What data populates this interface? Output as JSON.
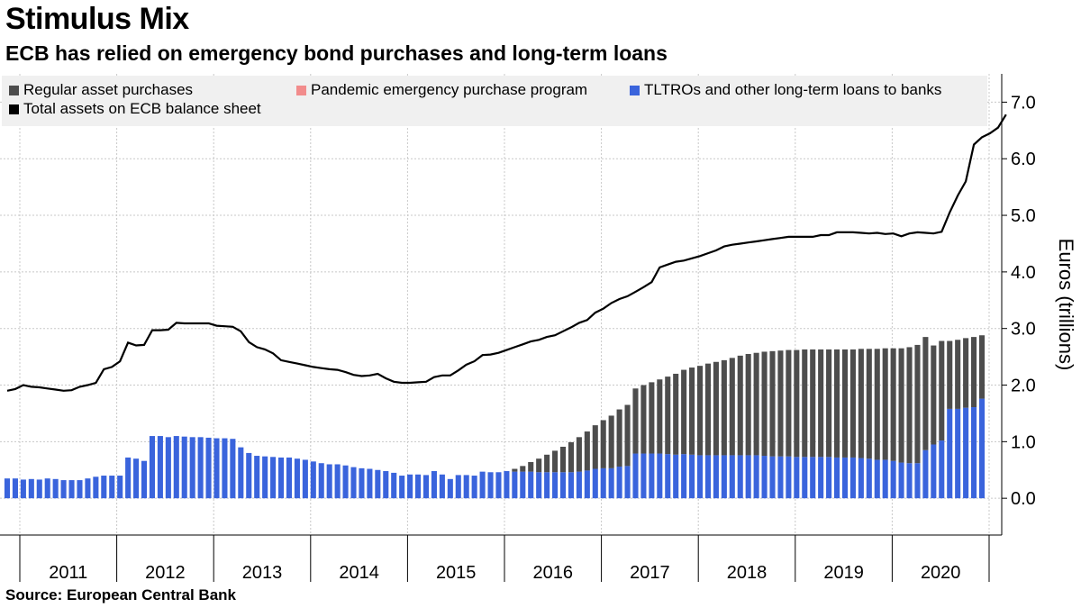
{
  "header": {
    "title": "Stimulus Mix",
    "subtitle": "ECB has relied on emergency bond purchases and long-term loans"
  },
  "footer": {
    "source": "Source:  European Central Bank"
  },
  "chart_data": {
    "type": "bar",
    "title": "Stimulus Mix",
    "subtitle": "ECB has relied on emergency bond purchases and long-term loans",
    "ylabel": "Euros (trillions)",
    "ylim": [
      -0.65,
      7.5
    ],
    "y_ticks": [
      "0.0",
      "1.0",
      "2.0",
      "3.0",
      "4.0",
      "5.0",
      "6.0",
      "7.0"
    ],
    "y_axis_side": "right",
    "grid": true,
    "legend_position": "top-left",
    "x_start": "2010-07",
    "x_end": "2020-10",
    "x_labels": [
      "2011",
      "2012",
      "2013",
      "2014",
      "2015",
      "2016",
      "2017",
      "2018",
      "2019",
      "2020"
    ],
    "colors": {
      "regular": "#4d4d4d",
      "pandemic": "#f28c8c",
      "tltro": "#3a64dc",
      "total": "#000000",
      "legend_bg": "#f0f0f0",
      "grid": "#c8c8c8"
    },
    "legend": [
      {
        "key": "regular",
        "label": "Regular asset purchases"
      },
      {
        "key": "pandemic",
        "label": "Pandemic emergency purchase program"
      },
      {
        "key": "tltro",
        "label": "TLTROs and other long-term loans to banks"
      },
      {
        "key": "total",
        "label": "Total assets on ECB balance sheet"
      }
    ],
    "series": [
      {
        "key": "tltro",
        "kind": "bar",
        "values": [
          0.35,
          0.35,
          0.33,
          0.34,
          0.33,
          0.35,
          0.34,
          0.32,
          0.32,
          0.32,
          0.35,
          0.38,
          0.4,
          0.4,
          0.4,
          0.72,
          0.7,
          0.66,
          1.1,
          1.1,
          1.08,
          1.1,
          1.09,
          1.08,
          1.08,
          1.07,
          1.06,
          1.06,
          1.05,
          0.9,
          0.8,
          0.75,
          0.74,
          0.73,
          0.72,
          0.72,
          0.7,
          0.68,
          0.65,
          0.62,
          0.6,
          0.6,
          0.58,
          0.55,
          0.53,
          0.52,
          0.5,
          0.48,
          0.45,
          0.4,
          0.42,
          0.42,
          0.41,
          0.48,
          0.42,
          0.34,
          0.41,
          0.41,
          0.4,
          0.47,
          0.46,
          0.46,
          0.48,
          0.47,
          0.47,
          0.47,
          0.46,
          0.46,
          0.46,
          0.46,
          0.46,
          0.47,
          0.49,
          0.52,
          0.53,
          0.53,
          0.56,
          0.57,
          0.79,
          0.79,
          0.79,
          0.79,
          0.78,
          0.77,
          0.78,
          0.77,
          0.76,
          0.76,
          0.76,
          0.76,
          0.76,
          0.76,
          0.76,
          0.76,
          0.75,
          0.74,
          0.74,
          0.74,
          0.73,
          0.73,
          0.73,
          0.73,
          0.73,
          0.72,
          0.72,
          0.72,
          0.71,
          0.7,
          0.68,
          0.68,
          0.66,
          0.63,
          0.62,
          0.62,
          0.85,
          0.95,
          1.02,
          1.58,
          1.58,
          1.6,
          1.61,
          1.76
        ]
      },
      {
        "key": "regular",
        "kind": "bar",
        "values": [
          0,
          0,
          0,
          0,
          0,
          0,
          0,
          0,
          0,
          0,
          0,
          0,
          0,
          0,
          0,
          0,
          0,
          0,
          0,
          0,
          0,
          0,
          0,
          0,
          0,
          0,
          0,
          0,
          0,
          0,
          0,
          0,
          0,
          0,
          0,
          0,
          0,
          0,
          0,
          0,
          0,
          0,
          0,
          0,
          0,
          0,
          0,
          0,
          0,
          0,
          0,
          0,
          0,
          0,
          0,
          0,
          0,
          0,
          0,
          0,
          0,
          0,
          0,
          0.05,
          0.1,
          0.17,
          0.24,
          0.31,
          0.38,
          0.45,
          0.53,
          0.61,
          0.69,
          0.77,
          0.85,
          0.93,
          1.01,
          1.08,
          1.15,
          1.21,
          1.26,
          1.31,
          1.37,
          1.43,
          1.49,
          1.54,
          1.58,
          1.62,
          1.65,
          1.68,
          1.72,
          1.76,
          1.79,
          1.81,
          1.84,
          1.86,
          1.87,
          1.88,
          1.89,
          1.9,
          1.9,
          1.9,
          1.9,
          1.91,
          1.91,
          1.91,
          1.93,
          1.94,
          1.96,
          1.97,
          1.99,
          2.02,
          2.05,
          2.09,
          2.0,
          1.75,
          1.76,
          1.2,
          1.22,
          1.23,
          1.24,
          1.12
        ]
      },
      {
        "key": "pandemic",
        "kind": "bar",
        "values": [
          0,
          0,
          0,
          0,
          0,
          0,
          0,
          0,
          0,
          0,
          0,
          0,
          0,
          0,
          0,
          0,
          0,
          0,
          0,
          0,
          0,
          0,
          0,
          0,
          0,
          0,
          0,
          0,
          0,
          0,
          0,
          0,
          0,
          0,
          0,
          0,
          0,
          0,
          0,
          0,
          0,
          0,
          0,
          0,
          0,
          0,
          0,
          0,
          0,
          0,
          0,
          0,
          0,
          0,
          0,
          0,
          0,
          0,
          0,
          0,
          0,
          0,
          0,
          0,
          0,
          0,
          0,
          0,
          0,
          0,
          0,
          0,
          0,
          0,
          0,
          0,
          0,
          0,
          0,
          0,
          0,
          0,
          0,
          0,
          0,
          0,
          0,
          0,
          0,
          0,
          0,
          0,
          0,
          0,
          0,
          0,
          0,
          0,
          0,
          0,
          0,
          0,
          0,
          0,
          0,
          0,
          0,
          0,
          0,
          0,
          0,
          0,
          0,
          0,
          0,
          0,
          0,
          0,
          0,
          0,
          0,
          0
        ]
      },
      {
        "key": "total",
        "kind": "line",
        "values": [
          1.9,
          1.93,
          2.0,
          1.97,
          1.96,
          1.94,
          1.92,
          1.9,
          1.91,
          1.97,
          2.0,
          2.04,
          2.28,
          2.32,
          2.42,
          2.75,
          2.7,
          2.71,
          2.97,
          2.97,
          2.98,
          3.1,
          3.09,
          3.09,
          3.09,
          3.09,
          3.05,
          3.04,
          3.03,
          2.95,
          2.76,
          2.67,
          2.63,
          2.56,
          2.44,
          2.41,
          2.38,
          2.35,
          2.32,
          2.3,
          2.28,
          2.27,
          2.23,
          2.18,
          2.16,
          2.17,
          2.2,
          2.12,
          2.06,
          2.04,
          2.04,
          2.05,
          2.06,
          2.14,
          2.17,
          2.17,
          2.26,
          2.36,
          2.42,
          2.53,
          2.54,
          2.57,
          2.62,
          2.67,
          2.72,
          2.77,
          2.8,
          2.85,
          2.88,
          2.95,
          3.02,
          3.1,
          3.15,
          3.28,
          3.35,
          3.45,
          3.52,
          3.57,
          3.65,
          3.73,
          3.82,
          4.08,
          4.13,
          4.18,
          4.2,
          4.24,
          4.28,
          4.33,
          4.38,
          4.45,
          4.48,
          4.5,
          4.52,
          4.54,
          4.56,
          4.58,
          4.6,
          4.62,
          4.62,
          4.62,
          4.62,
          4.65,
          4.65,
          4.7,
          4.7,
          4.7,
          4.69,
          4.68,
          4.69,
          4.67,
          4.68,
          4.63,
          4.68,
          4.7,
          4.69,
          4.68,
          4.71,
          5.05,
          5.35,
          5.6,
          6.25,
          6.38,
          6.45,
          6.55,
          6.78
        ]
      }
    ]
  }
}
